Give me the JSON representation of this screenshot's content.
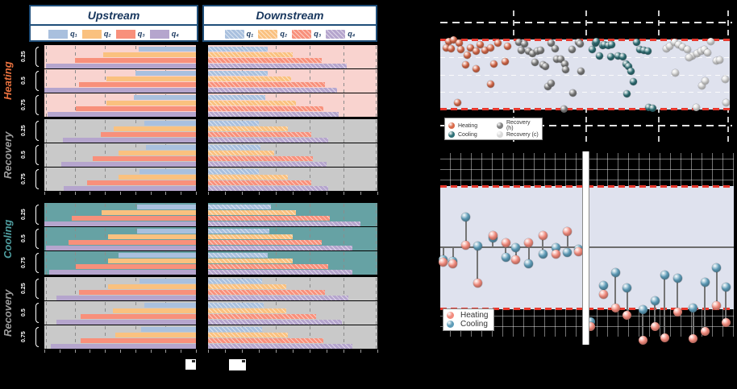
{
  "colors": {
    "page_bg": "#000000",
    "navy": "#17365d",
    "header_border": "#1f4e79",
    "quartiles": [
      "#a9c0de",
      "#fac17f",
      "#f8907b",
      "#b5a5cd"
    ],
    "red_dashed": "#e8392e",
    "band": "#dfe2ee",
    "baseline": "#6d6d6d",
    "stem_line": "#757575"
  },
  "left_figure": {
    "columns": [
      {
        "title": "Upstream",
        "hatched": false
      },
      {
        "title": "Downstream",
        "hatched": true
      }
    ],
    "legend_items": [
      "q₁",
      "q₂",
      "q₃",
      "q₄"
    ]
  },
  "scatter_legend": [
    {
      "label": "Heating",
      "color": "#d96a4a"
    },
    {
      "label": "Cooling",
      "color": "#2f7076"
    },
    {
      "label": "Recovery (h)",
      "color": "#7d7d7d"
    },
    {
      "label": "Recovery (c)",
      "color": "#d8d8d8"
    }
  ],
  "stem_legend": [
    {
      "label": "Heating",
      "color": "#f28b7d"
    },
    {
      "label": "Cooling",
      "color": "#5e9cb8"
    }
  ],
  "chart_data": {
    "quartile_bars": {
      "type": "bar",
      "orientation": "horizontal",
      "units": "bar lengths as fraction of panel span (axis tick values not legible in image)",
      "columns": [
        "Upstream",
        "Downstream"
      ],
      "quartile_series": [
        "q₁",
        "q₂",
        "q₃",
        "q₄"
      ],
      "groups": [
        {
          "label": "Heating",
          "label_color": "#e8713f",
          "bg": "#f9d3cf",
          "rows": [
            {
              "label": "0.25",
              "upstream": [
                0.38,
                0.61,
                0.8,
                0.99
              ],
              "downstream": [
                0.35,
                0.5,
                0.67,
                0.82
              ]
            },
            {
              "label": "0.5",
              "upstream": [
                0.4,
                0.59,
                0.77,
                1.0
              ],
              "downstream": [
                0.35,
                0.49,
                0.69,
                0.76
              ]
            },
            {
              "label": "0.75",
              "upstream": [
                0.41,
                0.59,
                0.79,
                0.98
              ],
              "downstream": [
                0.34,
                0.52,
                0.68,
                0.77
              ]
            }
          ]
        },
        {
          "label": "Recovery",
          "label_color": "#9b9b9b",
          "bg": "#c9c9c9",
          "rows": [
            {
              "label": "0.25",
              "upstream": [
                0.34,
                0.54,
                0.63,
                0.88
              ],
              "downstream": [
                0.3,
                0.47,
                0.61,
                0.71
              ]
            },
            {
              "label": "0.5",
              "upstream": [
                0.33,
                0.51,
                0.68,
                0.89
              ],
              "downstream": [
                0.31,
                0.39,
                0.62,
                0.7
              ]
            },
            {
              "label": "0.75",
              "upstream": [
                0.37,
                0.51,
                0.72,
                0.87
              ],
              "downstream": [
                0.3,
                0.47,
                0.61,
                0.71
              ]
            }
          ]
        },
        {
          "label": "Cooling",
          "label_color": "#4f9ea0",
          "bg": "#66a2a4",
          "rows": [
            {
              "label": "0.25",
              "upstream": [
                0.39,
                0.62,
                0.82,
                1.0
              ],
              "downstream": [
                0.37,
                0.52,
                0.72,
                0.9
              ]
            },
            {
              "label": "0.5",
              "upstream": [
                0.39,
                0.58,
                0.84,
                0.99
              ],
              "downstream": [
                0.36,
                0.5,
                0.67,
                0.85
              ]
            },
            {
              "label": "0.75",
              "upstream": [
                0.51,
                0.58,
                0.79,
                0.97
              ],
              "downstream": [
                0.35,
                0.5,
                0.71,
                0.85
              ]
            }
          ]
        },
        {
          "label": "Recovery",
          "label_color": "#9b9b9b",
          "bg": "#c9c9c9",
          "rows": [
            {
              "label": "0.25",
              "upstream": [
                0.37,
                0.58,
                0.77,
                0.92
              ],
              "downstream": [
                0.32,
                0.46,
                0.69,
                0.83
              ]
            },
            {
              "label": "0.5",
              "upstream": [
                0.34,
                0.55,
                0.76,
                0.92
              ],
              "downstream": [
                0.33,
                0.46,
                0.64,
                0.79
              ]
            },
            {
              "label": "0.75",
              "upstream": [
                0.36,
                0.53,
                0.76,
                0.96
              ],
              "downstream": [
                0.32,
                0.47,
                0.68,
                0.85
              ]
            }
          ]
        }
      ]
    },
    "boundary_scatter": {
      "type": "scatter",
      "units": "x: fraction of panel width; y: fraction of shaded band height from band top",
      "clusters": [
        {
          "name": "Heating",
          "color": "#d96a4a",
          "points": [
            [
              0.028,
              0.03
            ],
            [
              0.047,
              0.01
            ],
            [
              0.02,
              0.12
            ],
            [
              0.037,
              0.13
            ],
            [
              0.065,
              0.05
            ],
            [
              0.072,
              0.14
            ],
            [
              0.093,
              0.22
            ],
            [
              0.104,
              0.12
            ],
            [
              0.124,
              0.17
            ],
            [
              0.139,
              0.08
            ],
            [
              0.155,
              0.15
            ],
            [
              0.174,
              0.12
            ],
            [
              0.199,
              0.05
            ],
            [
              0.232,
              0.1
            ],
            [
              0.087,
              0.36
            ],
            [
              0.124,
              0.42
            ],
            [
              0.186,
              0.35
            ],
            [
              0.223,
              0.32
            ],
            [
              0.174,
              0.64
            ],
            [
              0.059,
              0.9
            ]
          ]
        },
        {
          "name": "Recovery (h)",
          "color": "#7d7d7d",
          "points": [
            [
              0.271,
              0.04
            ],
            [
              0.292,
              0.06
            ],
            [
              0.28,
              0.16
            ],
            [
              0.306,
              0.17
            ],
            [
              0.32,
              0.2
            ],
            [
              0.337,
              0.17
            ],
            [
              0.346,
              0.16
            ],
            [
              0.383,
              0.05
            ],
            [
              0.396,
              0.13
            ],
            [
              0.402,
              0.28
            ],
            [
              0.416,
              0.28
            ],
            [
              0.43,
              0.35
            ],
            [
              0.455,
              0.14
            ],
            [
              0.478,
              0.04
            ],
            [
              0.483,
              0.06
            ],
            [
              0.326,
              0.33
            ],
            [
              0.355,
              0.36
            ],
            [
              0.364,
              0.38
            ],
            [
              0.434,
              0.43
            ],
            [
              0.487,
              0.45
            ],
            [
              0.371,
              0.67
            ],
            [
              0.383,
              0.63
            ],
            [
              0.459,
              0.77
            ],
            [
              0.427,
              0.99
            ]
          ]
        },
        {
          "name": "Cooling",
          "color": "#2f7076",
          "points": [
            [
              0.524,
              0.14
            ],
            [
              0.536,
              0.05
            ],
            [
              0.54,
              0.03
            ],
            [
              0.56,
              0.09
            ],
            [
              0.566,
              0.08
            ],
            [
              0.581,
              0.09
            ],
            [
              0.593,
              0.08
            ],
            [
              0.613,
              0.24
            ],
            [
              0.631,
              0.25
            ],
            [
              0.642,
              0.35
            ],
            [
              0.651,
              0.38
            ],
            [
              0.678,
              0.04
            ],
            [
              0.689,
              0.14
            ],
            [
              0.702,
              0.15
            ],
            [
              0.716,
              0.17
            ],
            [
              0.551,
              0.24
            ],
            [
              0.59,
              0.25
            ],
            [
              0.659,
              0.45
            ],
            [
              0.666,
              0.6
            ],
            [
              0.644,
              0.78
            ],
            [
              0.72,
              0.97
            ],
            [
              0.735,
              0.98
            ]
          ]
        },
        {
          "name": "Recovery (c)",
          "color": "#d8d8d8",
          "points": [
            [
              0.78,
              0.13
            ],
            [
              0.793,
              0.1
            ],
            [
              0.808,
              0.04
            ],
            [
              0.824,
              0.08
            ],
            [
              0.838,
              0.11
            ],
            [
              0.854,
              0.14
            ],
            [
              0.87,
              0.24
            ],
            [
              0.886,
              0.2
            ],
            [
              0.901,
              0.17
            ],
            [
              0.912,
              0.14
            ],
            [
              0.923,
              0.19
            ],
            [
              0.935,
              0.03
            ],
            [
              0.953,
              0.31
            ],
            [
              0.965,
              0.29
            ],
            [
              0.811,
              0.48
            ],
            [
              0.86,
              0.26
            ],
            [
              0.903,
              0.66
            ],
            [
              0.915,
              0.59
            ],
            [
              0.984,
              0.57
            ],
            [
              0.884,
              0.97
            ],
            [
              0.988,
              0.9
            ]
          ]
        }
      ]
    },
    "deviation_stems": {
      "type": "stem",
      "units": "x: fraction of section width; y: fraction of shaded band height from band top (baseline = 0.5, values > 1 fall below band)",
      "series": [
        "Heating",
        "Cooling"
      ],
      "sections": [
        {
          "anchor_to_baseline": true,
          "baseline": 0.5,
          "stems": [
            {
              "x": 0.02,
              "heat": 0.62,
              "cool": 0.6
            },
            {
              "x": 0.09,
              "heat": 0.63,
              "cool": 0.61
            },
            {
              "x": 0.18,
              "heat": 0.48,
              "cool": 0.25
            },
            {
              "x": 0.26,
              "heat": 0.79,
              "cool": 0.49
            },
            {
              "x": 0.37,
              "heat": 0.4,
              "cool": 0.42
            },
            {
              "x": 0.46,
              "heat": 0.46,
              "cool": 0.58
            },
            {
              "x": 0.53,
              "heat": 0.6,
              "cool": 0.5
            },
            {
              "x": 0.62,
              "heat": 0.46,
              "cool": 0.63
            },
            {
              "x": 0.72,
              "heat": 0.4,
              "cool": 0.55
            },
            {
              "x": 0.81,
              "heat": 0.55,
              "cool": 0.5
            },
            {
              "x": 0.89,
              "heat": 0.37,
              "cool": 0.54
            },
            {
              "x": 0.97,
              "heat": 0.53,
              "cool": 0.51
            }
          ]
        },
        {
          "anchor_to_baseline": false,
          "stems": [
            {
              "x": 0.01,
              "heat": 1.14,
              "cool": 1.1
            },
            {
              "x": 0.1,
              "heat": 0.88,
              "cool": 0.81
            },
            {
              "x": 0.18,
              "heat": 0.99,
              "cool": 0.7
            },
            {
              "x": 0.26,
              "heat": 1.05,
              "cool": 0.83
            },
            {
              "x": 0.37,
              "heat": 1.25,
              "cool": 1.0
            },
            {
              "x": 0.455,
              "heat": 1.14,
              "cool": 0.93
            },
            {
              "x": 0.52,
              "heat": 1.23,
              "cool": 0.72
            },
            {
              "x": 0.61,
              "heat": 1.02,
              "cool": 0.75
            },
            {
              "x": 0.72,
              "heat": 1.24,
              "cool": 0.99
            },
            {
              "x": 0.8,
              "heat": 1.18,
              "cool": 0.78
            },
            {
              "x": 0.88,
              "heat": 0.97,
              "cool": 0.665
            },
            {
              "x": 0.945,
              "heat": 1.11,
              "cool": 0.82
            }
          ]
        }
      ]
    }
  }
}
